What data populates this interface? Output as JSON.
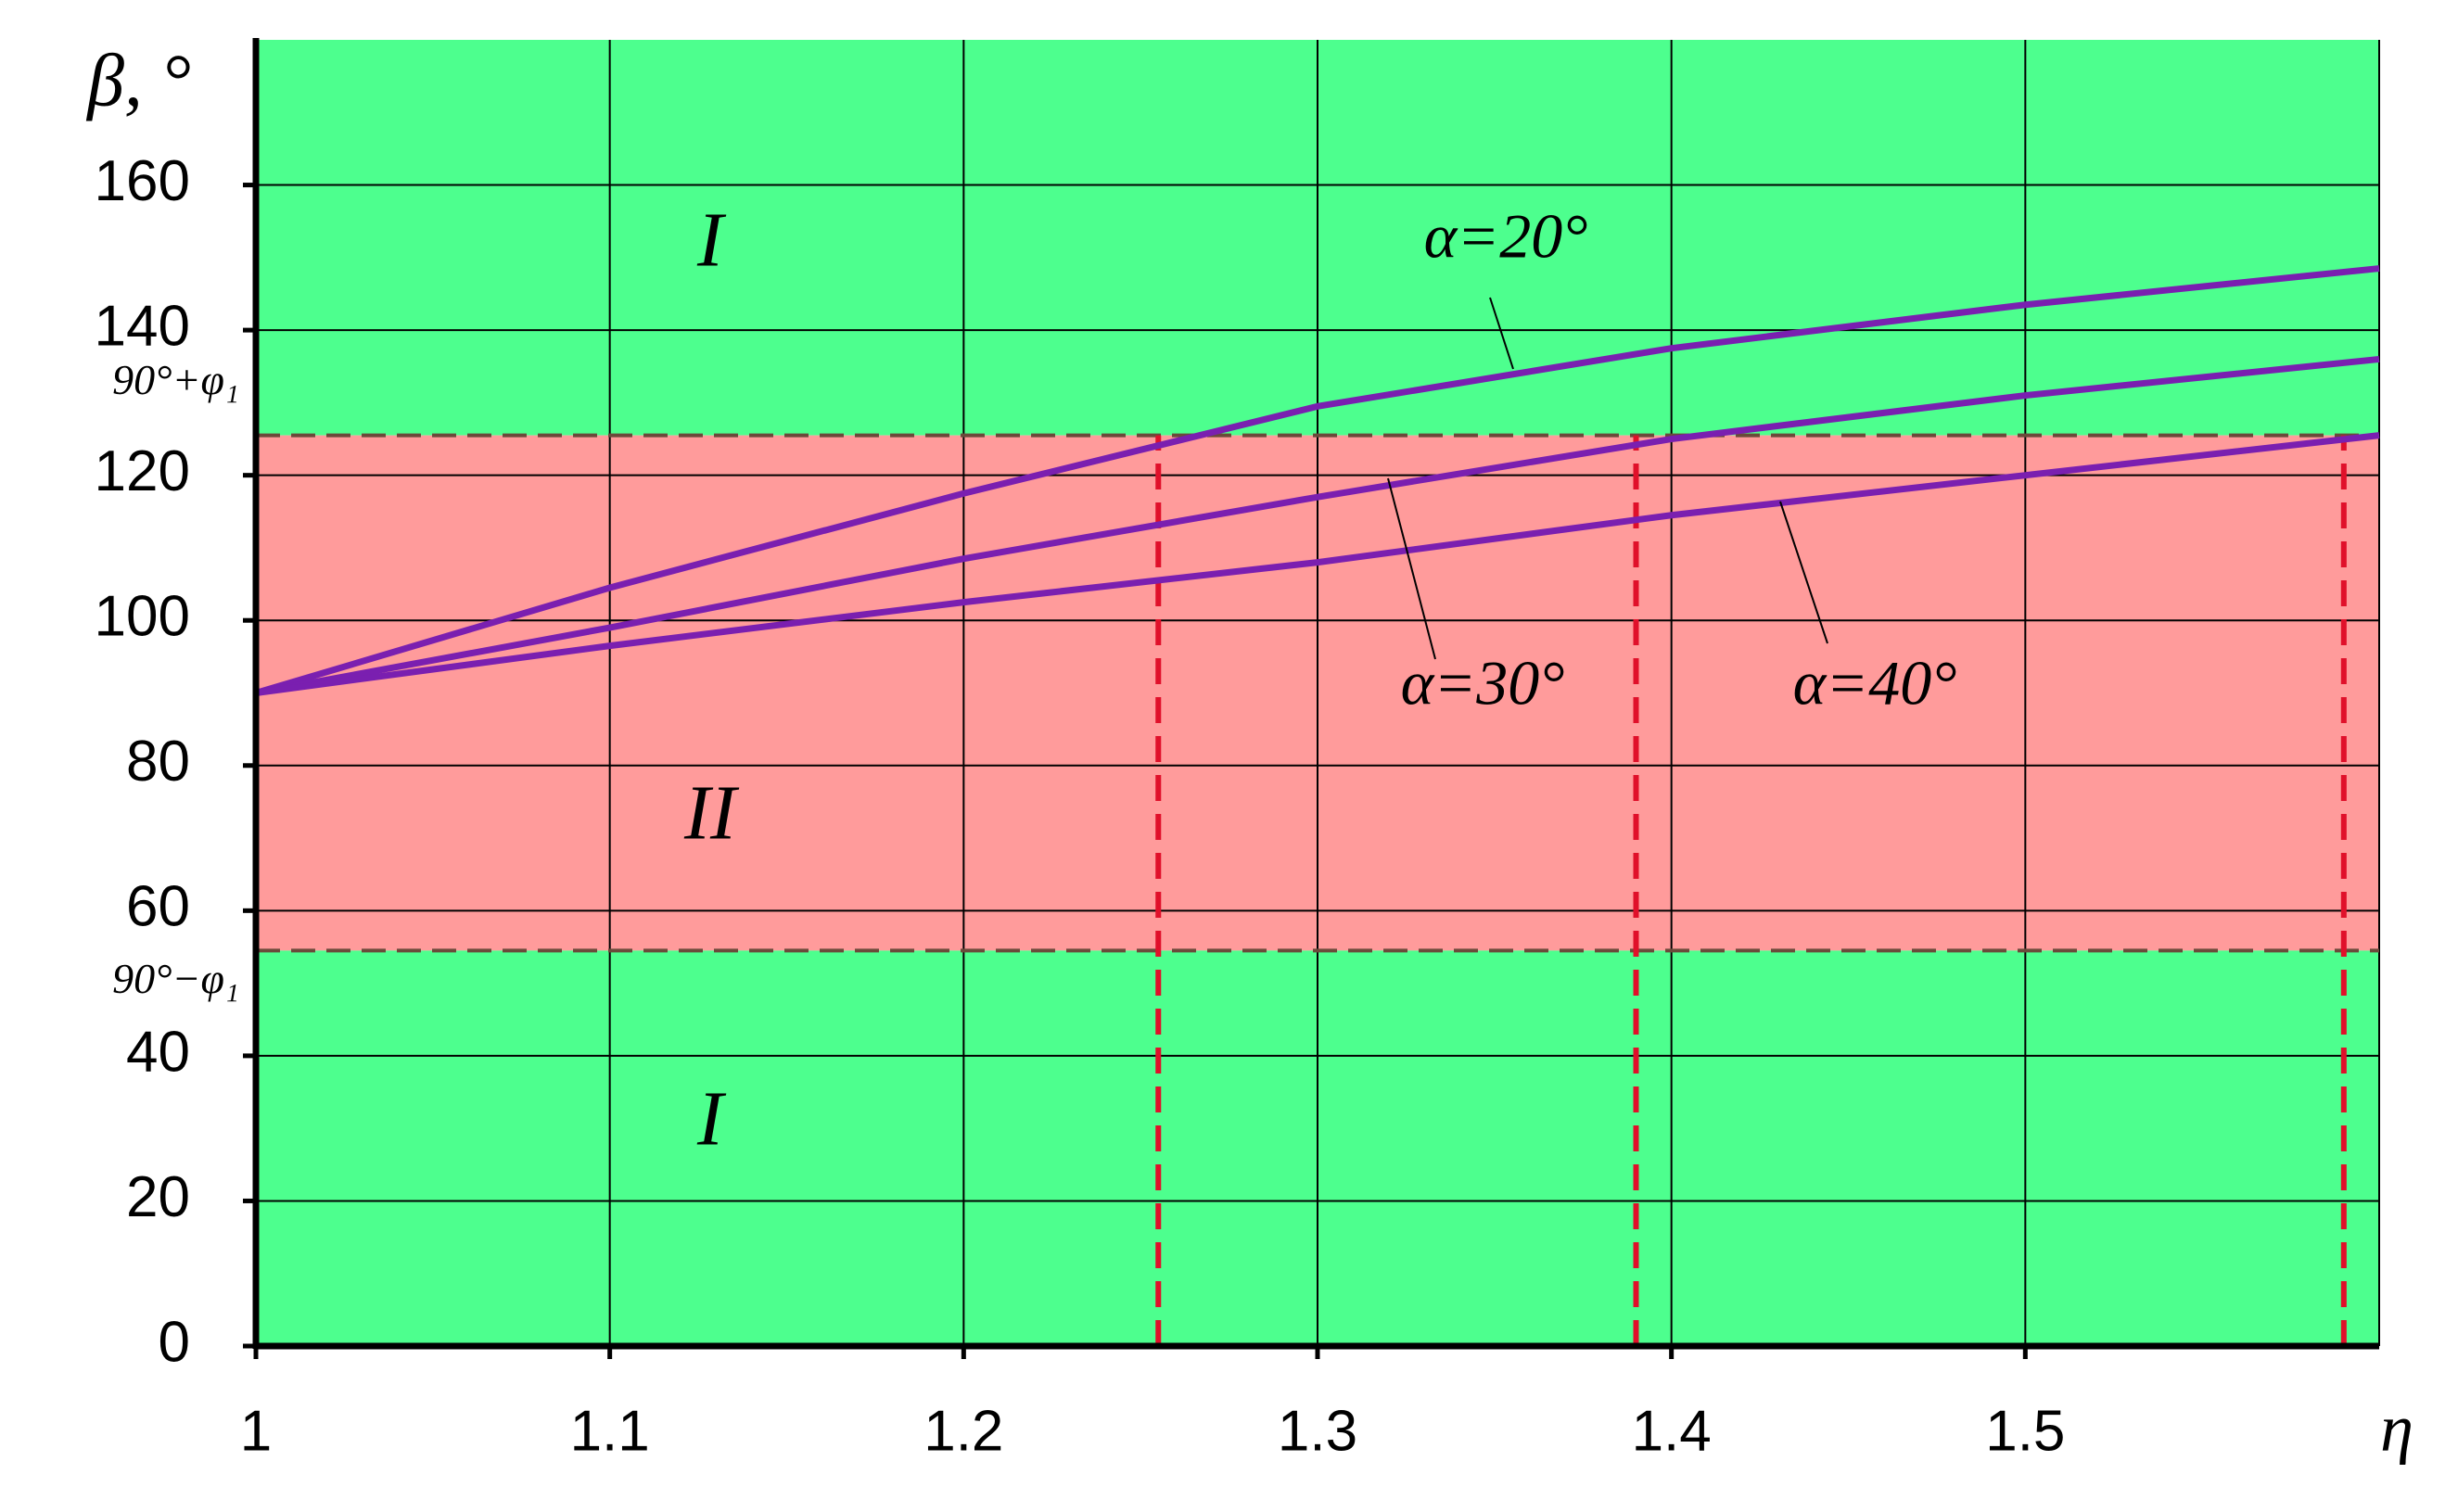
{
  "chart_data": {
    "type": "line",
    "y_label": "β, °",
    "x_label": "η",
    "x": [
      1,
      1.1,
      1.2,
      1.3,
      1.4,
      1.5,
      1.6
    ],
    "series": [
      {
        "name": "α=20°",
        "color": "#7a1fb0",
        "values": [
          90,
          104.5,
          117.5,
          129.5,
          137.5,
          143.5,
          148.5
        ]
      },
      {
        "name": "α=30°",
        "color": "#7a1fb0",
        "values": [
          90,
          99,
          108.5,
          117,
          125,
          131,
          136
        ]
      },
      {
        "name": "α=40°",
        "color": "#7a1fb0",
        "values": [
          90,
          96.5,
          102.5,
          108,
          114.5,
          120,
          125.5
        ]
      }
    ],
    "xlim": [
      1,
      1.6
    ],
    "xticks": [
      1,
      1.1,
      1.2,
      1.3,
      1.4,
      1.5
    ],
    "ylim": [
      0,
      180
    ],
    "yticks": [
      0,
      20,
      40,
      60,
      80,
      100,
      120,
      140,
      160
    ],
    "grid": true,
    "bands": [
      {
        "label": "I",
        "range": [
          125.5,
          180
        ],
        "color": "#4dff8e"
      },
      {
        "label": "II",
        "range": [
          54.5,
          125.5
        ],
        "color": "#ff9b9b"
      },
      {
        "label": "I",
        "range": [
          0,
          54.5
        ],
        "color": "#4dff8e"
      }
    ],
    "band_edges": [
      {
        "value": 125.5,
        "label": "90°+φ₁"
      },
      {
        "value": 54.5,
        "label": "90°−φ₁"
      }
    ],
    "critical_eta": [
      1.255,
      1.39,
      1.59
    ],
    "critical_color": "#e0102a"
  }
}
